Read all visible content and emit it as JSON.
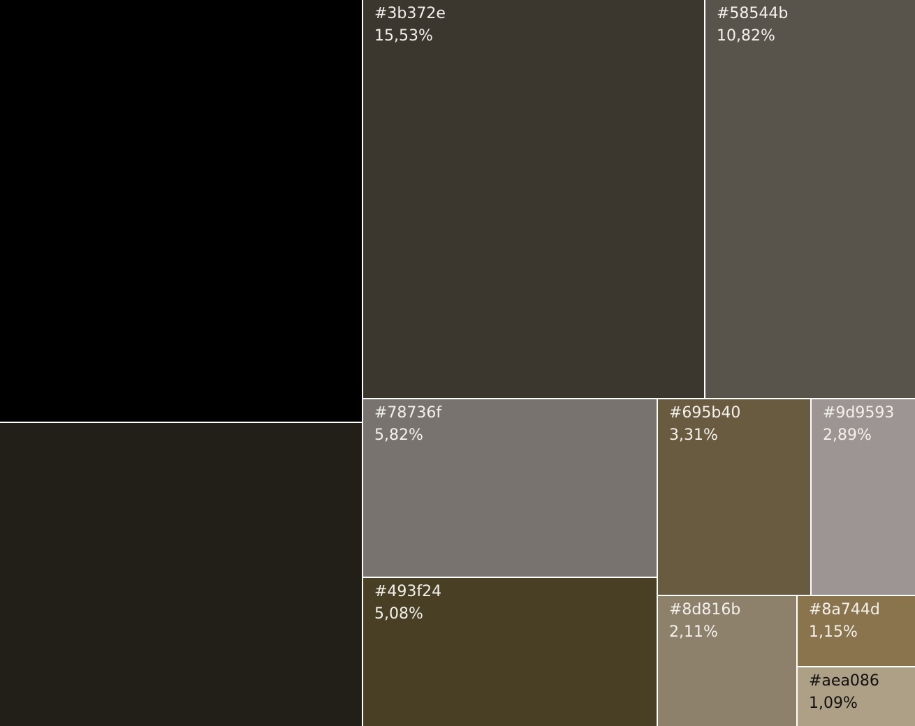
{
  "chart_data": {
    "type": "treemap",
    "unit": "%",
    "cells": [
      {
        "color": "#000000",
        "value": 30.12,
        "label": "",
        "percent": ""
      },
      {
        "color": "#221e18",
        "value": 21.99,
        "label": "",
        "percent": ""
      },
      {
        "color": "#3b372e",
        "value": 15.53,
        "label": "#3b372e",
        "percent": "15,53%"
      },
      {
        "color": "#58544b",
        "value": 10.82,
        "label": "#58544b",
        "percent": "10,82%"
      },
      {
        "color": "#78736f",
        "value": 5.82,
        "label": "#78736f",
        "percent": "5,82%"
      },
      {
        "color": "#493f24",
        "value": 5.08,
        "label": "#493f24",
        "percent": "5,08%"
      },
      {
        "color": "#695b40",
        "value": 3.31,
        "label": "#695b40",
        "percent": "3,31%"
      },
      {
        "color": "#9d9593",
        "value": 2.89,
        "label": "#9d9593",
        "percent": "2,89%"
      },
      {
        "color": "#8d816b",
        "value": 2.11,
        "label": "#8d816b",
        "percent": "2,11%"
      },
      {
        "color": "#8a744d",
        "value": 1.15,
        "label": "#8a744d",
        "percent": "1,15%"
      },
      {
        "color": "#aea086",
        "value": 1.09,
        "label": "#aea086",
        "percent": "1,09%"
      }
    ]
  }
}
